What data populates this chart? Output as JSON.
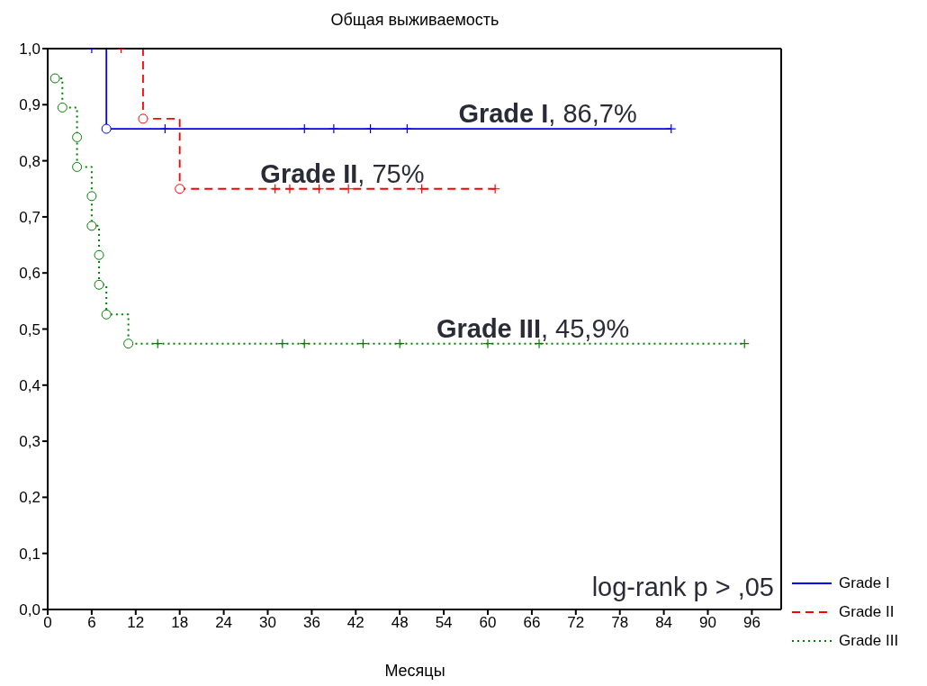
{
  "chart_data": {
    "type": "step",
    "title": "Общая выживаемость",
    "xlabel": "Месяцы",
    "xlim": [
      0,
      100
    ],
    "xticks": [
      0,
      6,
      12,
      18,
      24,
      30,
      36,
      42,
      48,
      54,
      60,
      66,
      72,
      78,
      84,
      90,
      96
    ],
    "ylim": [
      0,
      1
    ],
    "yticks": [
      {
        "value": 0,
        "label": "0,0"
      },
      {
        "value": 0.1,
        "label": "0,1"
      },
      {
        "value": 0.2,
        "label": "0,2"
      },
      {
        "value": 0.3,
        "label": "0,3"
      },
      {
        "value": 0.4,
        "label": "0,4"
      },
      {
        "value": 0.5,
        "label": "0,5"
      },
      {
        "value": 0.6,
        "label": "0,6"
      },
      {
        "value": 0.7,
        "label": "0,7"
      },
      {
        "value": 0.8,
        "label": "0,8"
      },
      {
        "value": 0.9,
        "label": "0,9"
      },
      {
        "value": 1,
        "label": "1,0"
      }
    ],
    "grid": false,
    "legend": "bottom right",
    "series": [
      {
        "name": "Grade I",
        "type": "step",
        "color": "#0000ff",
        "line_style": "solid",
        "x": [
          0,
          8,
          85
        ],
        "values": [
          1,
          0.857,
          0.857
        ]
      },
      {
        "name": "Grade II",
        "type": "step",
        "color": "#ff0000",
        "line_style": "dashed",
        "x": [
          0,
          13,
          18,
          61
        ],
        "values": [
          1,
          0.875,
          0.75,
          0.75
        ]
      },
      {
        "name": "Grade III",
        "type": "step",
        "color": "#008000",
        "line_style": "dotted",
        "x": [
          1,
          2,
          4,
          4,
          6,
          6,
          7,
          7,
          8,
          11,
          95
        ],
        "values": [
          0.947,
          0.895,
          0.842,
          0.789,
          0.737,
          0.684,
          0.632,
          0.579,
          0.526,
          0.474,
          0.474
        ]
      },
      {
        "type": "scatter",
        "marker": "circle",
        "color": "#0000ff",
        "x": [
          8
        ],
        "values": [
          0.857
        ]
      },
      {
        "type": "scatter",
        "marker": "circle",
        "color": "#ff0000",
        "x": [
          13,
          18
        ],
        "values": [
          0.875,
          0.75
        ]
      },
      {
        "type": "scatter",
        "marker": "circle",
        "color": "#008000",
        "x": [
          1,
          2,
          4,
          4,
          6,
          6,
          7,
          7,
          8,
          11
        ],
        "values": [
          0.947,
          0.895,
          0.842,
          0.789,
          0.737,
          0.684,
          0.632,
          0.579,
          0.526,
          0.474
        ]
      },
      {
        "type": "scatter",
        "marker": "cross",
        "color": "#0000ff",
        "x": [
          6,
          16,
          35,
          39,
          44,
          49,
          85
        ],
        "values": [
          1,
          0.857,
          0.857,
          0.857,
          0.857,
          0.857,
          0.857
        ]
      },
      {
        "type": "scatter",
        "marker": "cross",
        "color": "#ff0000",
        "x": [
          10,
          31,
          33,
          37,
          41,
          51,
          61
        ],
        "values": [
          1,
          0.75,
          0.75,
          0.75,
          0.75,
          0.75,
          0.75
        ]
      },
      {
        "type": "scatter",
        "marker": "cross",
        "color": "#008000",
        "x": [
          15,
          32,
          35,
          43,
          48,
          60,
          67,
          95
        ],
        "values": [
          0.474,
          0.474,
          0.474,
          0.474,
          0.474,
          0.474,
          0.474,
          0.474
        ]
      }
    ],
    "annotations": [
      {
        "text": "Grade I, 86,7%",
        "x": 56,
        "y": 0.857
      },
      {
        "text": "Grade II, 75%",
        "x": 29,
        "y": 0.75
      },
      {
        "text": "Grade III, 45,9%",
        "x": 53,
        "y": 0.474
      },
      "log-rank p > ,05"
    ]
  }
}
